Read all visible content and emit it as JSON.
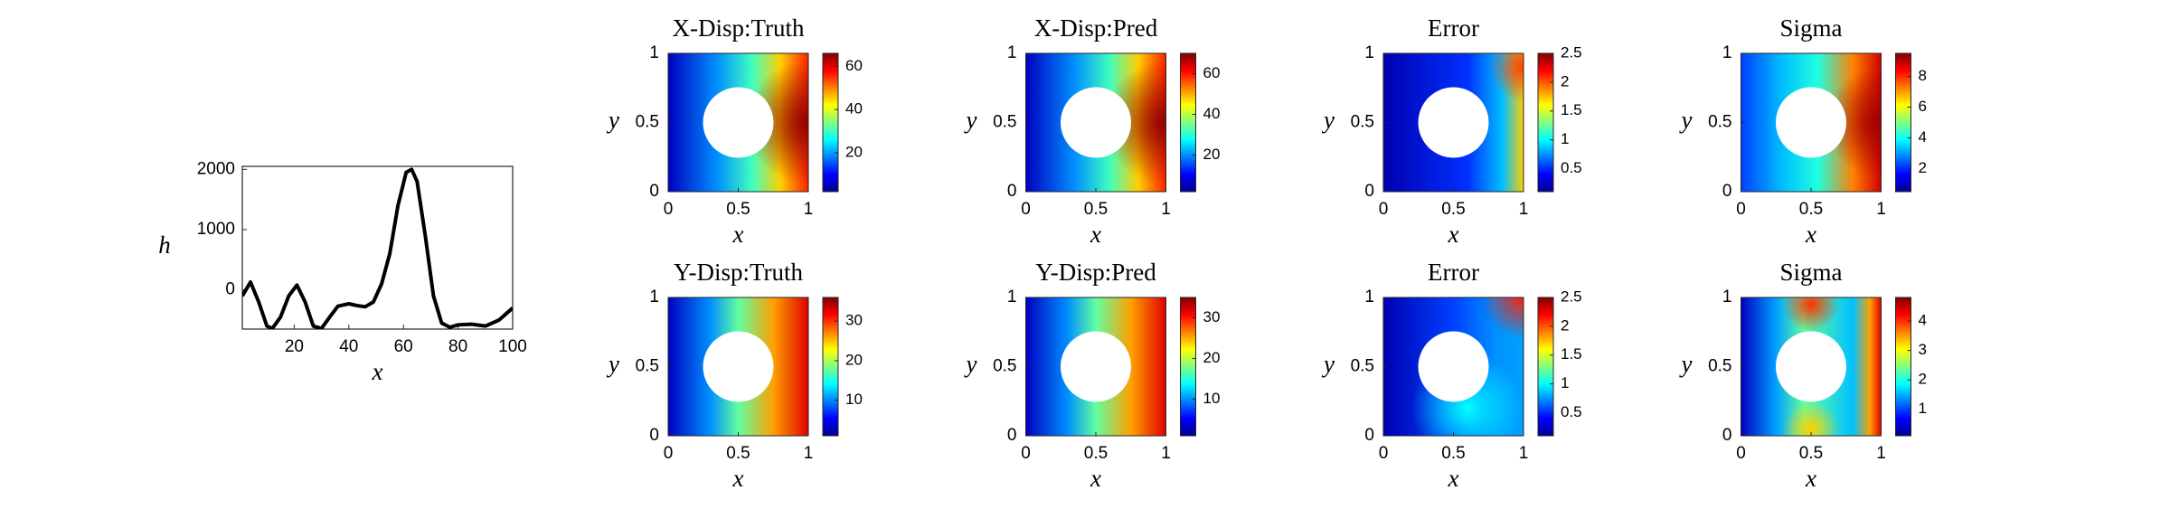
{
  "chart_data": [
    {
      "type": "line",
      "xlabel": "x",
      "ylabel": "h",
      "color": "#000000",
      "x": [
        1,
        4,
        7,
        10,
        12,
        15,
        18,
        21,
        24,
        27,
        30,
        33,
        36,
        40,
        43,
        46,
        49,
        52,
        55,
        58,
        61,
        63,
        65,
        68,
        71,
        74,
        77,
        80,
        85,
        90,
        95,
        100
      ],
      "values": [
        -100,
        130,
        -200,
        -600,
        -640,
        -450,
        -100,
        80,
        -200,
        -600,
        -640,
        -450,
        -270,
        -230,
        -260,
        -280,
        -200,
        100,
        600,
        1400,
        1950,
        2000,
        1800,
        900,
        -100,
        -550,
        -620,
        -580,
        -570,
        -600,
        -500,
        -300
      ],
      "xlim": [
        1,
        100
      ],
      "xticks": [
        20,
        40,
        60,
        80,
        100
      ],
      "ylim": [
        -650,
        2050
      ],
      "yticks": [
        0,
        1000,
        2000
      ]
    },
    {
      "type": "heatmap",
      "title": "X-Disp:Truth",
      "xlabel": "x",
      "ylabel": "y",
      "xlim": [
        0,
        1
      ],
      "xticks": [
        0,
        0.5,
        1
      ],
      "ylim": [
        0,
        1
      ],
      "yticks": [
        0,
        0.5,
        1
      ],
      "clim": [
        2,
        66
      ],
      "cticks": [
        20,
        40,
        60
      ],
      "colormap": "jet"
    },
    {
      "type": "heatmap",
      "title": "X-Disp:Pred",
      "xlabel": "x",
      "ylabel": "y",
      "xlim": [
        0,
        1
      ],
      "xticks": [
        0,
        0.5,
        1
      ],
      "ylim": [
        0,
        1
      ],
      "yticks": [
        0,
        0.5,
        1
      ],
      "clim": [
        2,
        70
      ],
      "cticks": [
        20,
        40,
        60
      ],
      "colormap": "jet"
    },
    {
      "type": "heatmap",
      "title": "Error",
      "xlabel": "x",
      "ylabel": "y",
      "xlim": [
        0,
        1
      ],
      "xticks": [
        0,
        0.5,
        1
      ],
      "ylim": [
        0,
        1
      ],
      "yticks": [
        0,
        0.5,
        1
      ],
      "clim": [
        0.1,
        2.5
      ],
      "cticks": [
        0.5,
        1,
        1.5,
        2,
        2.5
      ],
      "colormap": "jet"
    },
    {
      "type": "heatmap",
      "title": "Sigma",
      "xlabel": "x",
      "ylabel": "y",
      "xlim": [
        0,
        1
      ],
      "xticks": [
        0,
        0.5,
        1
      ],
      "ylim": [
        0,
        1
      ],
      "yticks": [
        0,
        0.5,
        1
      ],
      "clim": [
        0.5,
        9.5
      ],
      "cticks": [
        2,
        4,
        6,
        8
      ],
      "colormap": "jet"
    },
    {
      "type": "heatmap",
      "title": "Y-Disp:Truth",
      "xlabel": "x",
      "ylabel": "y",
      "xlim": [
        0,
        1
      ],
      "xticks": [
        0,
        0.5,
        1
      ],
      "ylim": [
        0,
        1
      ],
      "yticks": [
        0,
        0.5,
        1
      ],
      "clim": [
        1,
        36
      ],
      "cticks": [
        10,
        20,
        30
      ],
      "colormap": "jet"
    },
    {
      "type": "heatmap",
      "title": "Y-Disp:Pred",
      "xlabel": "x",
      "ylabel": "y",
      "xlim": [
        0,
        1
      ],
      "xticks": [
        0,
        0.5,
        1
      ],
      "ylim": [
        0,
        1
      ],
      "yticks": [
        0,
        0.5,
        1
      ],
      "clim": [
        1,
        35
      ],
      "cticks": [
        10,
        20,
        30
      ],
      "colormap": "jet"
    },
    {
      "type": "heatmap",
      "title": "Error",
      "xlabel": "x",
      "ylabel": "y",
      "xlim": [
        0,
        1
      ],
      "xticks": [
        0,
        0.5,
        1
      ],
      "ylim": [
        0,
        1
      ],
      "yticks": [
        0,
        0.5,
        1
      ],
      "clim": [
        0.1,
        2.5
      ],
      "cticks": [
        0.5,
        1,
        1.5,
        2,
        2.5
      ],
      "colormap": "jet"
    },
    {
      "type": "heatmap",
      "title": "Sigma",
      "xlabel": "x",
      "ylabel": "y",
      "xlim": [
        0,
        1
      ],
      "xticks": [
        0,
        0.5,
        1
      ],
      "ylim": [
        0,
        1
      ],
      "yticks": [
        0,
        0.5,
        1
      ],
      "clim": [
        0.1,
        4.8
      ],
      "cticks": [
        1,
        2,
        3,
        4
      ],
      "colormap": "jet"
    }
  ]
}
